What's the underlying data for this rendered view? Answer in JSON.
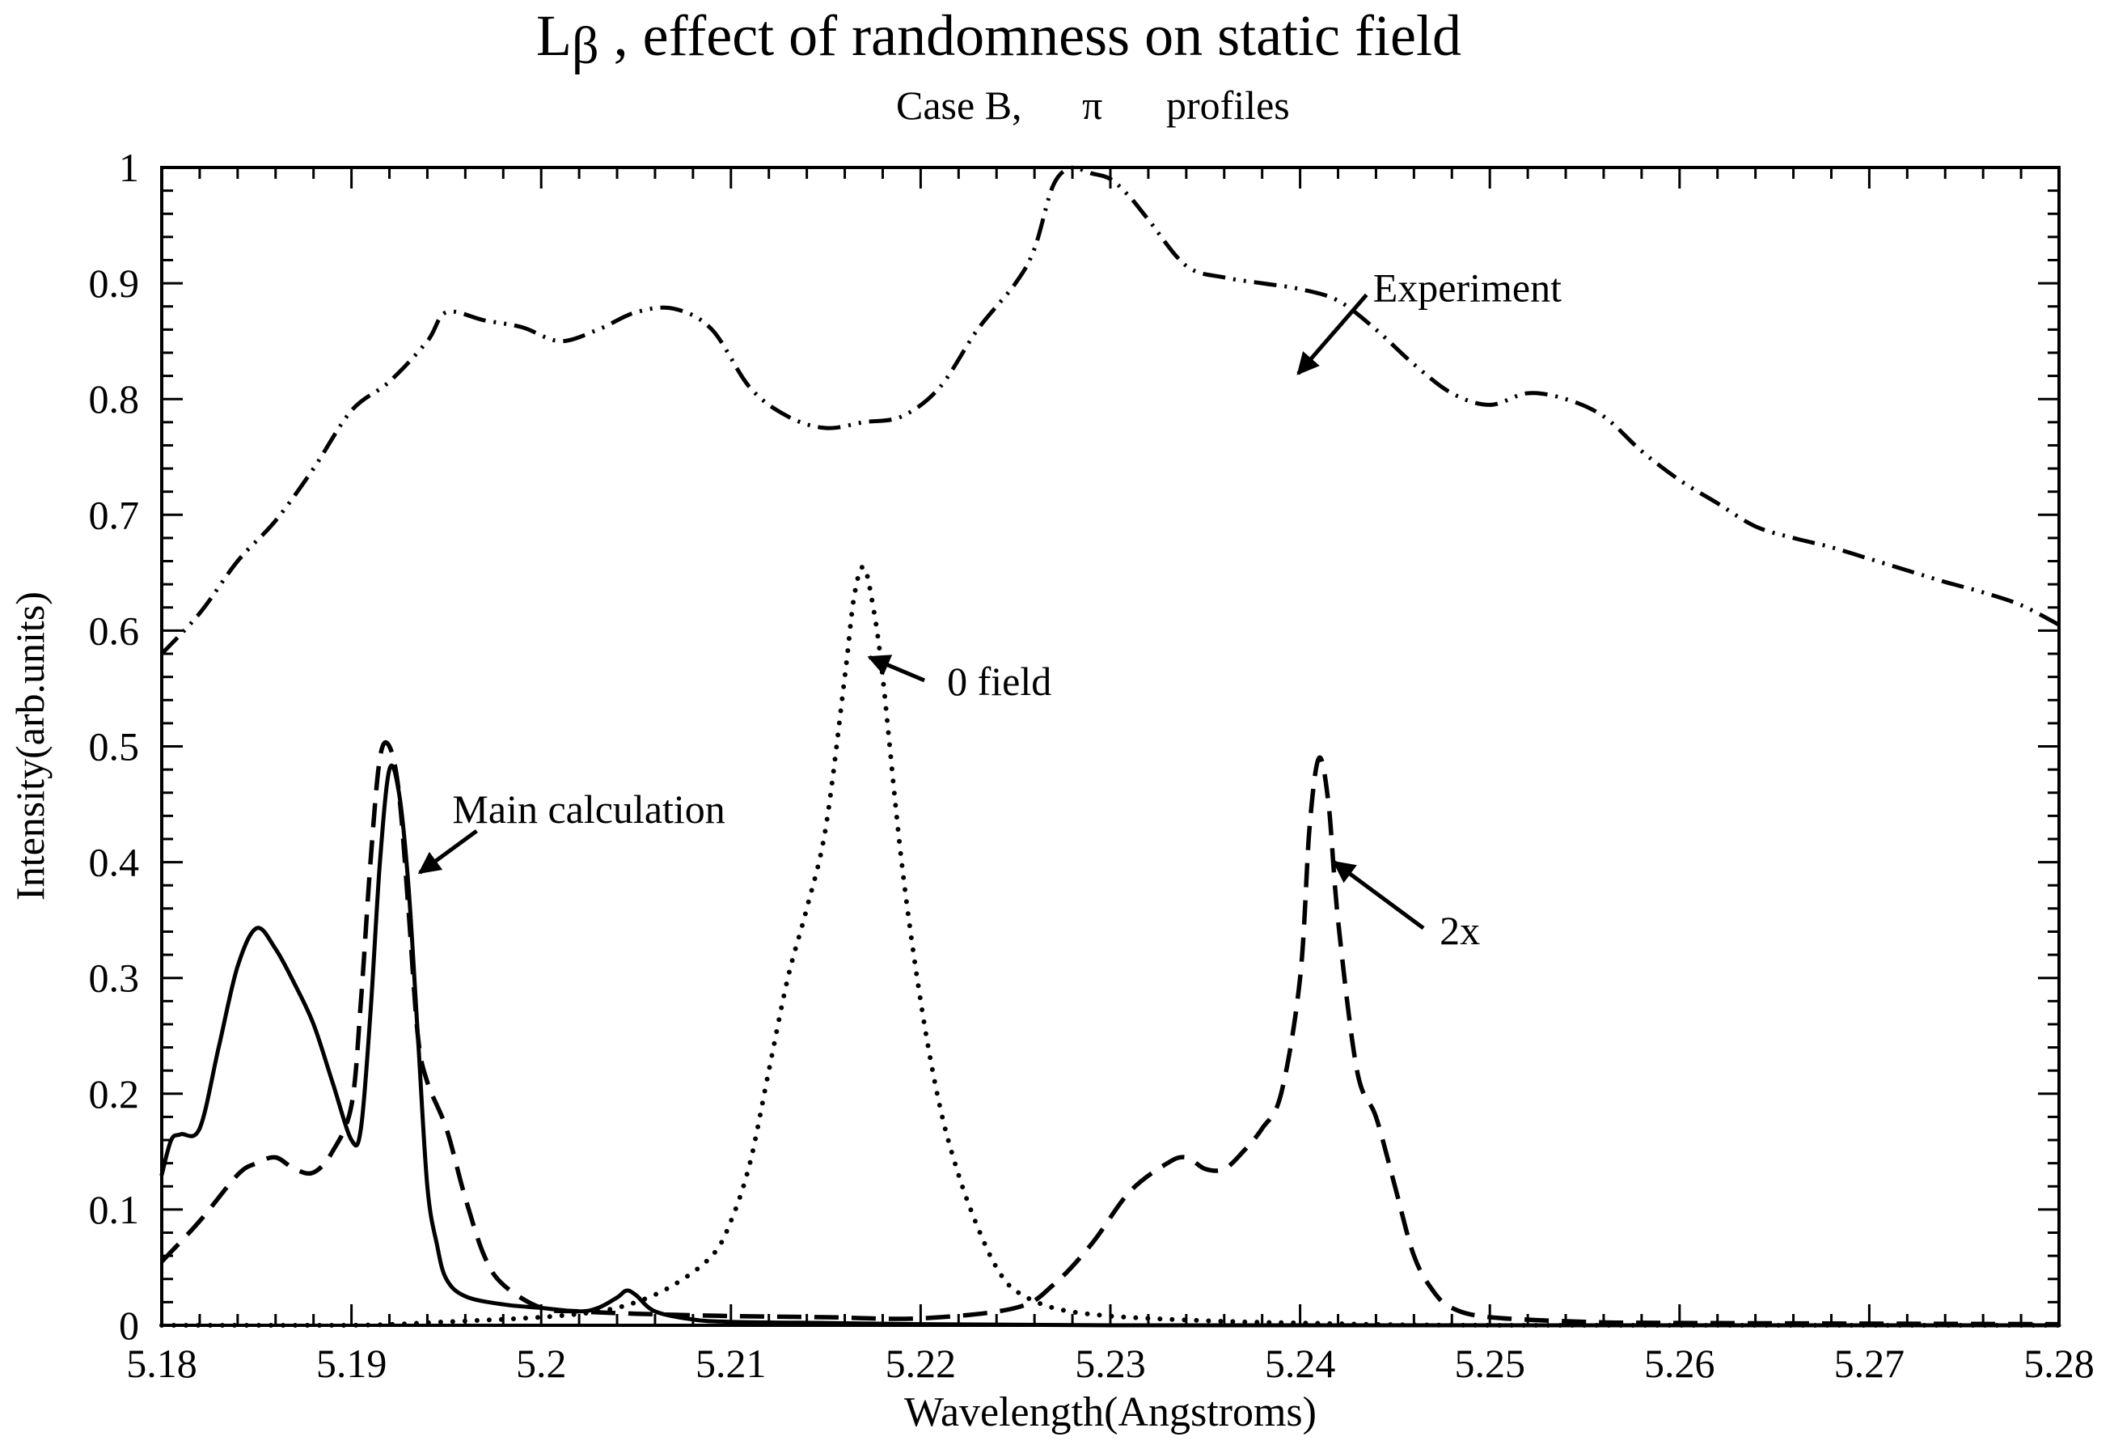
{
  "chart_data": {
    "type": "line",
    "title": "L-β , effect of randomness on static field",
    "title_main": "L",
    "title_beta": "β",
    "title_rest": " , effect of randomness on static field",
    "subtitle_case": "Case B,",
    "subtitle_pi": "π",
    "subtitle_profiles": "profiles",
    "xlabel": "Wavelength(Angstroms)",
    "ylabel": "Intensity(arb.units)",
    "xlim": [
      5.18,
      5.28
    ],
    "ylim": [
      0,
      1
    ],
    "xticks": [
      5.18,
      5.19,
      5.2,
      5.21,
      5.22,
      5.23,
      5.24,
      5.25,
      5.26,
      5.27,
      5.28
    ],
    "xtick_labels": [
      "5.18",
      "5.19",
      "5.2",
      "5.21",
      "5.22",
      "5.23",
      "5.24",
      "5.25",
      "5.26",
      "5.27",
      "5.28"
    ],
    "yticks": [
      0,
      0.1,
      0.2,
      0.3,
      0.4,
      0.5,
      0.6,
      0.7,
      0.8,
      0.9,
      1
    ],
    "ytick_labels": [
      "0",
      "0.1",
      "0.2",
      "0.3",
      "0.4",
      "0.5",
      "0.6",
      "0.7",
      "0.8",
      "0.9",
      "1"
    ],
    "color": "#000000",
    "series": [
      {
        "name": "Experiment",
        "style": "dashdotdot",
        "x": [
          5.18,
          5.182,
          5.184,
          5.186,
          5.188,
          5.19,
          5.192,
          5.194,
          5.195,
          5.197,
          5.199,
          5.201,
          5.203,
          5.205,
          5.207,
          5.209,
          5.211,
          5.213,
          5.215,
          5.217,
          5.219,
          5.221,
          5.223,
          5.225,
          5.226,
          5.227,
          5.228,
          5.229,
          5.23,
          5.231,
          5.232,
          5.234,
          5.236,
          5.238,
          5.24,
          5.242,
          5.244,
          5.246,
          5.248,
          5.25,
          5.252,
          5.254,
          5.256,
          5.258,
          5.26,
          5.262,
          5.264,
          5.266,
          5.268,
          5.27,
          5.272,
          5.274,
          5.276,
          5.278,
          5.28
        ],
        "y": [
          0.58,
          0.615,
          0.66,
          0.695,
          0.74,
          0.79,
          0.815,
          0.85,
          0.875,
          0.868,
          0.862,
          0.85,
          0.86,
          0.875,
          0.878,
          0.86,
          0.81,
          0.785,
          0.775,
          0.78,
          0.785,
          0.81,
          0.86,
          0.9,
          0.93,
          0.985,
          1.0,
          0.995,
          0.99,
          0.975,
          0.955,
          0.915,
          0.905,
          0.9,
          0.895,
          0.885,
          0.86,
          0.83,
          0.805,
          0.795,
          0.805,
          0.8,
          0.785,
          0.755,
          0.73,
          0.71,
          0.69,
          0.68,
          0.672,
          0.662,
          0.652,
          0.642,
          0.633,
          0.622,
          0.605
        ]
      },
      {
        "name": "0 field",
        "style": "dotted",
        "x": [
          5.18,
          5.19,
          5.195,
          5.2,
          5.203,
          5.205,
          5.207,
          5.209,
          5.21,
          5.211,
          5.212,
          5.213,
          5.214,
          5.215,
          5.216,
          5.2165,
          5.217,
          5.2175,
          5.218,
          5.219,
          5.22,
          5.221,
          5.222,
          5.223,
          5.224,
          5.225,
          5.227,
          5.23,
          5.235,
          5.24,
          5.25,
          5.28
        ],
        "y": [
          0.0,
          0.0,
          0.003,
          0.007,
          0.012,
          0.02,
          0.035,
          0.06,
          0.09,
          0.14,
          0.22,
          0.3,
          0.36,
          0.43,
          0.56,
          0.63,
          0.655,
          0.62,
          0.56,
          0.4,
          0.28,
          0.19,
          0.13,
          0.085,
          0.05,
          0.03,
          0.015,
          0.008,
          0.004,
          0.002,
          0.0,
          0.0
        ]
      },
      {
        "name": "Main calculation",
        "style": "solid",
        "x": [
          5.18,
          5.1805,
          5.181,
          5.182,
          5.183,
          5.184,
          5.185,
          5.186,
          5.187,
          5.188,
          5.189,
          5.19,
          5.1905,
          5.191,
          5.1915,
          5.192,
          5.1925,
          5.193,
          5.1935,
          5.194,
          5.1945,
          5.195,
          5.196,
          5.198,
          5.2,
          5.202,
          5.203,
          5.204,
          5.2045,
          5.205,
          5.206,
          5.208,
          5.21,
          5.215,
          5.22,
          5.23,
          5.25,
          5.28
        ],
        "y": [
          0.13,
          0.16,
          0.165,
          0.17,
          0.24,
          0.31,
          0.343,
          0.325,
          0.295,
          0.26,
          0.21,
          0.16,
          0.17,
          0.27,
          0.4,
          0.48,
          0.46,
          0.38,
          0.25,
          0.12,
          0.07,
          0.04,
          0.025,
          0.018,
          0.015,
          0.012,
          0.015,
          0.024,
          0.03,
          0.026,
          0.012,
          0.005,
          0.003,
          0.002,
          0.001,
          0.0,
          0.0,
          0.0
        ]
      },
      {
        "name": "2x",
        "style": "dashed",
        "x": [
          5.18,
          5.182,
          5.184,
          5.185,
          5.186,
          5.187,
          5.188,
          5.189,
          5.19,
          5.1905,
          5.191,
          5.1915,
          5.192,
          5.1925,
          5.193,
          5.1935,
          5.194,
          5.195,
          5.196,
          5.197,
          5.198,
          5.2,
          5.202,
          5.205,
          5.21,
          5.215,
          5.22,
          5.225,
          5.227,
          5.229,
          5.231,
          5.233,
          5.234,
          5.235,
          5.236,
          5.237,
          5.238,
          5.239,
          5.24,
          5.2405,
          5.241,
          5.2415,
          5.242,
          5.243,
          5.244,
          5.245,
          5.246,
          5.247,
          5.248,
          5.25,
          5.255,
          5.26,
          5.28
        ],
        "y": [
          0.055,
          0.09,
          0.13,
          0.14,
          0.145,
          0.135,
          0.132,
          0.15,
          0.19,
          0.28,
          0.4,
          0.49,
          0.5,
          0.46,
          0.36,
          0.25,
          0.21,
          0.17,
          0.11,
          0.06,
          0.035,
          0.015,
          0.012,
          0.01,
          0.008,
          0.007,
          0.006,
          0.015,
          0.035,
          0.07,
          0.115,
          0.14,
          0.145,
          0.135,
          0.135,
          0.15,
          0.17,
          0.2,
          0.3,
          0.43,
          0.49,
          0.45,
          0.35,
          0.22,
          0.18,
          0.12,
          0.06,
          0.03,
          0.015,
          0.007,
          0.003,
          0.002,
          0.001
        ]
      }
    ],
    "annotations": [
      {
        "name": "experiment",
        "text": "Experiment",
        "arrow_from": [
          5.2435,
          0.89
        ],
        "arrow_to": [
          5.2399,
          0.822
        ]
      },
      {
        "name": "zero-field",
        "text": "0 field",
        "arrow_from": [
          5.2202,
          0.557
        ],
        "arrow_to": [
          5.2173,
          0.577
        ]
      },
      {
        "name": "main-calculation",
        "text": "Main calculation",
        "arrow_from": [
          5.1966,
          0.427
        ],
        "arrow_to": [
          5.1936,
          0.391
        ]
      },
      {
        "name": "two-x",
        "text": "2x",
        "arrow_from": [
          5.2465,
          0.343
        ],
        "arrow_to": [
          5.2418,
          0.4
        ]
      }
    ]
  }
}
